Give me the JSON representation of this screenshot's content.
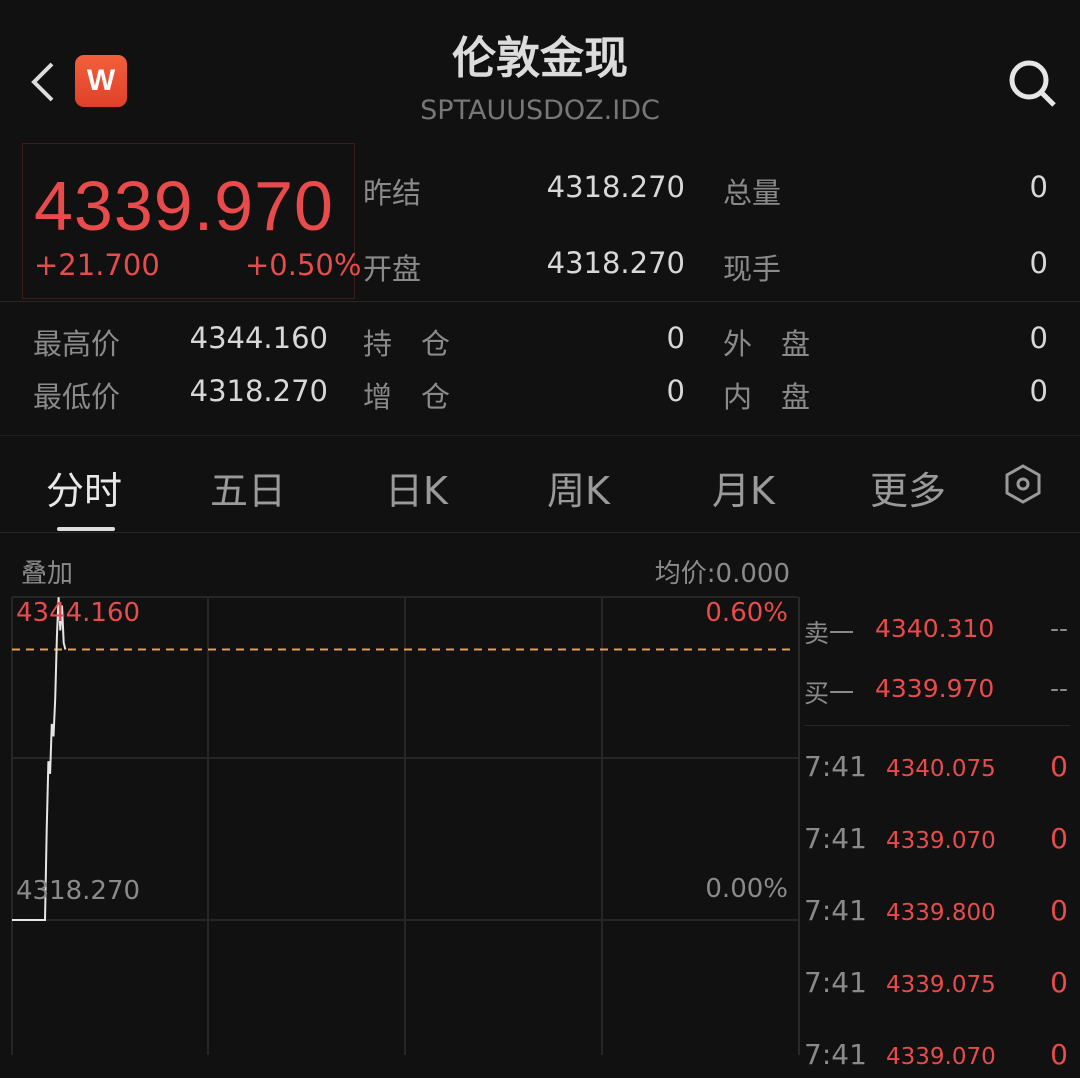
{
  "header": {
    "title": "伦敦金现",
    "code": "SPTAUUSDOZ.IDC",
    "logo": "W",
    "icons": [
      "back-chevron-icon",
      "search-icon"
    ]
  },
  "quote": {
    "price": "4339.970",
    "change": "+21.700",
    "change_pct": "+0.50%"
  },
  "stats": [
    {
      "label": "昨结",
      "value": "4318.270",
      "label2": "总量",
      "value2": "0"
    },
    {
      "label": "开盘",
      "value": "4318.270",
      "label2": "现手",
      "value2": "0"
    },
    {
      "label": "最高价",
      "value": "4344.160",
      "label2": "持　仓",
      "value2": "0",
      "label3": "外　盘",
      "value3": "0"
    },
    {
      "label": "最低价",
      "value": "4318.270",
      "label2": "增　仓",
      "value2": "0",
      "label3": "内　盘",
      "value3": "0"
    }
  ],
  "tabs": [
    {
      "label": "分时",
      "active": true
    },
    {
      "label": "五日"
    },
    {
      "label": "日K"
    },
    {
      "label": "周K"
    },
    {
      "label": "月K"
    },
    {
      "label": "更多"
    }
  ],
  "chart_toolbar": {
    "overlay": "叠加",
    "avg": "均价:0.000"
  },
  "chart_data": {
    "type": "line",
    "y_labels": {
      "top": "4344.160",
      "bottom": "4318.270",
      "top_pct": "0.60%",
      "bottom_pct": "0.00%"
    },
    "ylim": [
      4318.27,
      4344.18
    ],
    "current_price_line": 4339.97,
    "series": [
      {
        "values": [
          4318.27,
          4318.27,
          4318.27,
          4318.27,
          4318.27,
          4318.27,
          4318.27,
          4318.27,
          4318.27,
          4318.27,
          4318.27,
          4325.5,
          4331.0,
          4330.0,
          4334.0,
          4333.0,
          4336.0,
          4341.0,
          4344.16,
          4341.5,
          4343.5,
          4340.5,
          4339.97
        ]
      }
    ],
    "colors": {
      "line": "#e6e6e6",
      "dash": "#e0a050",
      "up": "#e84b4b"
    },
    "grid": true
  },
  "orderbook": {
    "asks": [
      {
        "label": "卖一",
        "price": "4340.310",
        "vol": "--"
      }
    ],
    "bids": [
      {
        "label": "买一",
        "price": "4339.970",
        "vol": "--"
      }
    ]
  },
  "ticks": [
    {
      "time": "7:41",
      "price": "4340.075",
      "vol": "0"
    },
    {
      "time": "7:41",
      "price": "4339.070",
      "vol": "0"
    },
    {
      "time": "7:41",
      "price": "4339.800",
      "vol": "0"
    },
    {
      "time": "7:41",
      "price": "4339.075",
      "vol": "0"
    },
    {
      "time": "7:41",
      "price": "4339.070",
      "vol": "0"
    }
  ]
}
